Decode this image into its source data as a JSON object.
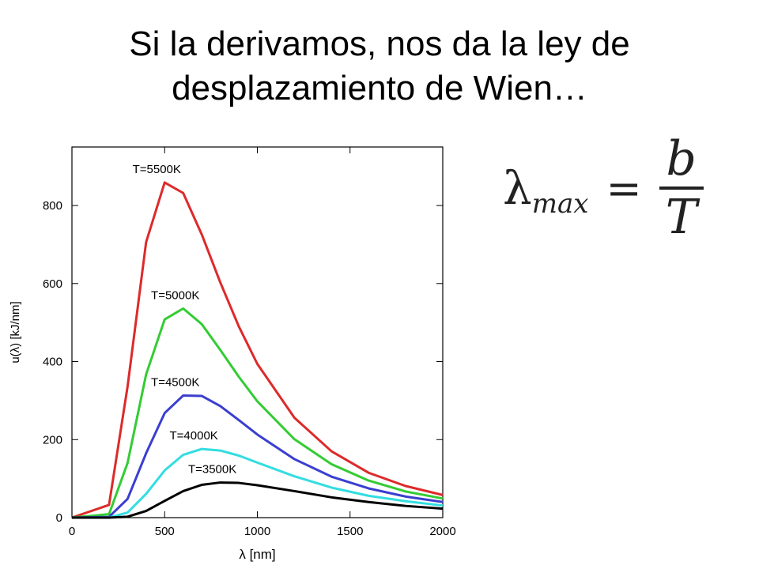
{
  "header": {
    "title_line1": "Si la derivamos, nos da la ley de",
    "title_line2": "desplazamiento de Wien…"
  },
  "formula": {
    "lhs": "λ",
    "sub": "max",
    "eq": "=",
    "numerator": "b",
    "denominator": "T"
  },
  "chart_data": {
    "type": "line",
    "x_label": "λ [nm]",
    "y_label": "u(λ) [kJ/nm]",
    "x": [
      0,
      200,
      300,
      400,
      500,
      600,
      700,
      800,
      900,
      1000,
      1200,
      1400,
      1600,
      1800,
      2000
    ],
    "series": [
      {
        "name": "T=5500K",
        "color": "#dd2a2a",
        "values": [
          0,
          32.6,
          336,
          706,
          859,
          832,
          726,
          603,
          490,
          394,
          256,
          170,
          115,
          81,
          58
        ]
      },
      {
        "name": "T=5000K",
        "color": "#33cc33",
        "values": [
          0,
          8.8,
          140,
          367,
          508,
          536,
          496,
          430,
          361,
          298,
          201,
          137,
          95,
          67,
          49
        ]
      },
      {
        "name": "T=4500K",
        "color": "#3a3fd0",
        "values": [
          0,
          1.8,
          48,
          165,
          268,
          313,
          312,
          286,
          250,
          213,
          150,
          105,
          75,
          54,
          40
        ]
      },
      {
        "name": "T=4000K",
        "color": "#33dde0",
        "values": [
          0,
          0.2,
          13,
          61,
          121,
          161,
          176,
          172,
          159,
          141,
          106,
          77,
          56,
          42,
          31
        ]
      },
      {
        "name": "T=3500K",
        "color": "#000000",
        "values": [
          0,
          0,
          2.3,
          17,
          43,
          68,
          84,
          90,
          89,
          83,
          68,
          52,
          40,
          30,
          23
        ]
      }
    ],
    "xlim": [
      0,
      2000
    ],
    "xticks": [
      0,
      500,
      1000,
      1500,
      2000
    ],
    "ylim": [
      0,
      950
    ],
    "yticks": [
      0,
      200,
      400,
      600,
      800
    ]
  }
}
